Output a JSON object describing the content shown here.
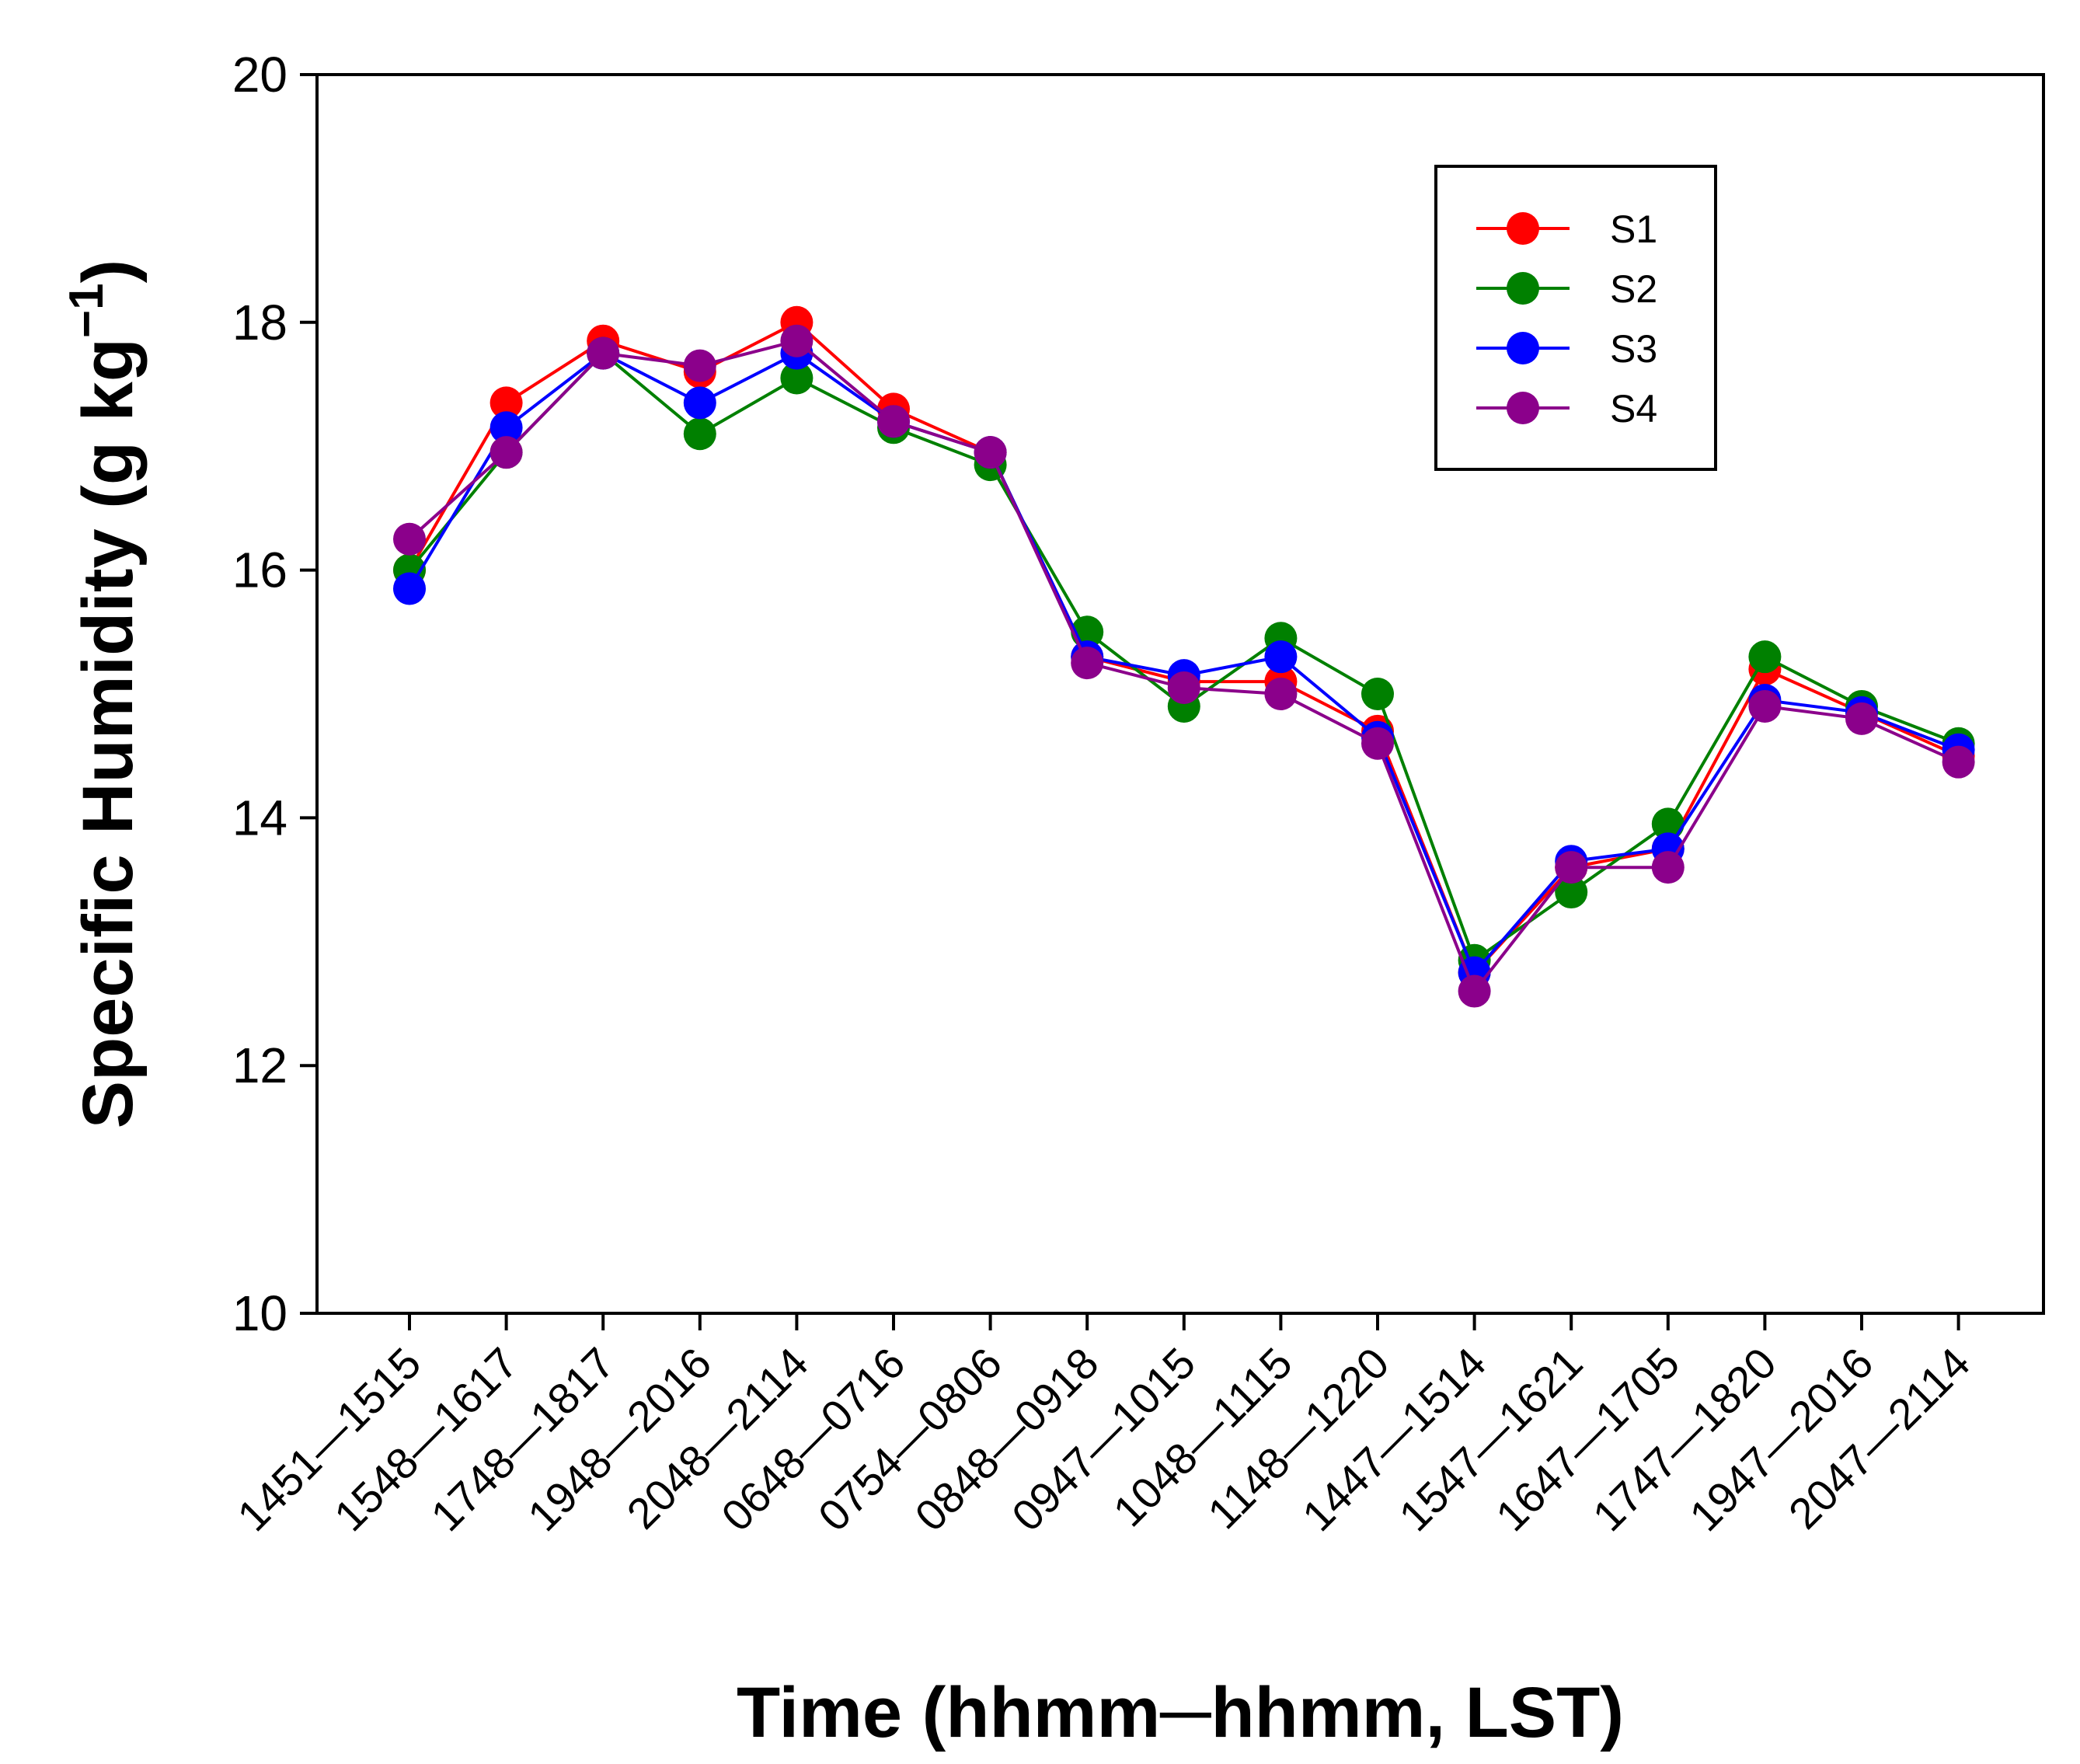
{
  "chart_data": {
    "type": "line",
    "title": "",
    "xlabel": "Time (hhmm─hhmm, LST)",
    "ylabel_main": "Specific Humidity (g kg",
    "ylabel_sup": "−1",
    "ylabel_close": ")",
    "ylim": [
      10,
      20
    ],
    "yticks": [
      10,
      12,
      14,
      16,
      18,
      20
    ],
    "ytick_labels": [
      "10",
      "12",
      "14",
      "16",
      "18",
      "20"
    ],
    "legend_position": "top-right",
    "categories": [
      "1451—1515",
      "1548—1617",
      "1748—1817",
      "1948—2016",
      "2048—2114",
      "0648—0716",
      "0754—0806",
      "0848—0918",
      "0947—1015",
      "1048—1115",
      "1148—1220",
      "1447—1514",
      "1547—1621",
      "1647—1705",
      "1747—1820",
      "1947—2016",
      "2047—2114"
    ],
    "series": [
      {
        "name": "S1",
        "color": "#ff0000",
        "values": [
          16.0,
          17.35,
          17.85,
          17.6,
          18.0,
          17.3,
          16.95,
          15.3,
          15.1,
          15.1,
          14.7,
          12.75,
          13.6,
          13.75,
          15.2,
          14.85,
          14.5
        ]
      },
      {
        "name": "S2",
        "color": "#008000",
        "values": [
          16.0,
          16.95,
          17.75,
          17.1,
          17.55,
          17.15,
          16.85,
          15.5,
          14.9,
          15.45,
          15.0,
          12.85,
          13.4,
          13.95,
          15.3,
          14.9,
          14.6
        ]
      },
      {
        "name": "S3",
        "color": "#0000ff",
        "values": [
          15.85,
          17.15,
          17.75,
          17.35,
          17.75,
          17.2,
          16.95,
          15.3,
          15.15,
          15.3,
          14.65,
          12.75,
          13.65,
          13.75,
          14.95,
          14.85,
          14.55
        ]
      },
      {
        "name": "S4",
        "color": "#8b008b",
        "values": [
          16.25,
          16.95,
          17.75,
          17.65,
          17.85,
          17.2,
          16.95,
          15.25,
          15.05,
          15.0,
          14.6,
          12.6,
          13.6,
          13.6,
          14.9,
          14.8,
          14.45
        ]
      }
    ]
  }
}
